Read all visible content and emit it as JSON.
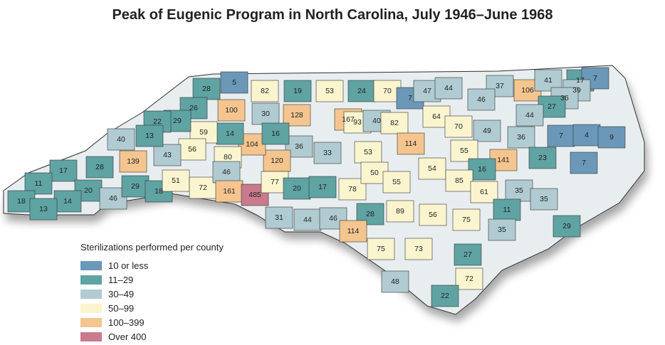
{
  "title": "Peak of Eugenic Program in North Carolina, July 1946–June 1968",
  "legend": {
    "title": "Sterilizations performed per county",
    "items": [
      {
        "label": "10 or less",
        "color": "#6b98b8",
        "max": 10
      },
      {
        "label": "11–29",
        "color": "#5fa3a3",
        "max": 29
      },
      {
        "label": "30–49",
        "color": "#b0cbd1",
        "max": 49
      },
      {
        "label": "50–99",
        "color": "#faf5cf",
        "max": 99
      },
      {
        "label": "100–399",
        "color": "#f4c58f",
        "max": 399
      },
      {
        "label": "Over 400",
        "color": "#c97a8c",
        "max": 100000
      }
    ]
  },
  "counties": [
    28,
    5,
    82,
    19,
    53,
    24,
    70,
    7,
    47,
    44,
    37,
    106,
    41,
    17,
    7,
    39,
    36,
    27,
    44,
    46,
    26,
    100,
    30,
    128,
    167,
    93,
    40,
    82,
    64,
    70,
    49,
    36,
    7,
    4,
    9,
    7,
    23,
    141,
    55,
    16,
    54,
    114,
    53,
    33,
    36,
    120,
    104,
    16,
    14,
    80,
    59,
    56,
    43,
    29,
    22,
    13,
    40,
    139,
    28,
    17,
    11,
    20,
    18,
    14,
    13,
    46,
    29,
    18,
    51,
    72,
    46,
    161,
    485,
    77,
    20,
    17,
    31,
    44,
    46,
    78,
    50,
    55,
    28,
    114,
    89,
    56,
    85,
    61,
    75,
    35,
    35,
    11,
    35,
    29,
    75,
    73,
    27,
    48,
    72,
    22
  ]
}
